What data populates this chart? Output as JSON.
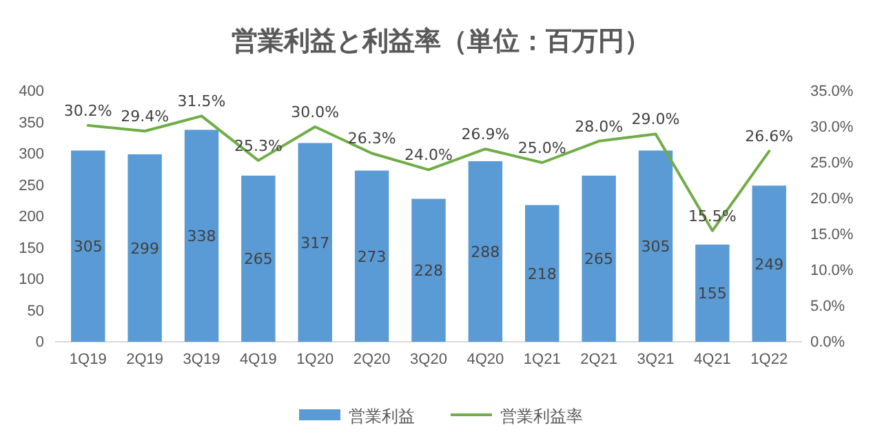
{
  "chart_data": {
    "type": "bar",
    "title": "営業利益と利益率（単位：百万円）",
    "categories": [
      "1Q19",
      "2Q19",
      "3Q19",
      "4Q19",
      "1Q20",
      "2Q20",
      "3Q20",
      "4Q20",
      "1Q21",
      "2Q21",
      "3Q21",
      "4Q21",
      "1Q22"
    ],
    "series": [
      {
        "name": "営業利益",
        "color": "#5b9bd5",
        "values": [
          305,
          299,
          338,
          265,
          317,
          273,
          228,
          288,
          218,
          265,
          305,
          155,
          249
        ],
        "value_labels": [
          "305",
          "299",
          "338",
          "265",
          "317",
          "273",
          "228",
          "288",
          "218",
          "265",
          "305",
          "155",
          "249"
        ]
      },
      {
        "name": "営業利益率",
        "type": "line",
        "axis": "y2",
        "color": "#70ad47",
        "values": [
          30.2,
          29.4,
          31.5,
          25.3,
          30.0,
          26.3,
          24.0,
          26.9,
          25.0,
          28.0,
          29.0,
          15.5,
          26.6
        ],
        "value_labels": [
          "30.2%",
          "29.4%",
          "31.5%",
          "25.3%",
          "30.0%",
          "26.3%",
          "24.0%",
          "26.9%",
          "25.0%",
          "28.0%",
          "29.0%",
          "15.5%",
          "26.6%"
        ]
      }
    ],
    "ylim": [
      0,
      400
    ],
    "yticks": [
      0,
      50,
      100,
      150,
      200,
      250,
      300,
      350,
      400
    ],
    "y2lim": [
      0,
      35
    ],
    "y2ticks": [
      {
        "value": 0,
        "label": "0.0%"
      },
      {
        "value": 5,
        "label": "5.0%"
      },
      {
        "value": 10,
        "label": "10.0%"
      },
      {
        "value": 15,
        "label": "15.0%"
      },
      {
        "value": 20,
        "label": "20.0%"
      },
      {
        "value": 25,
        "label": "25.0%"
      },
      {
        "value": 30,
        "label": "30.0%"
      },
      {
        "value": 35,
        "label": "35.0%"
      }
    ],
    "legend": "bottom",
    "marker": "none",
    "line_style": "solid"
  }
}
